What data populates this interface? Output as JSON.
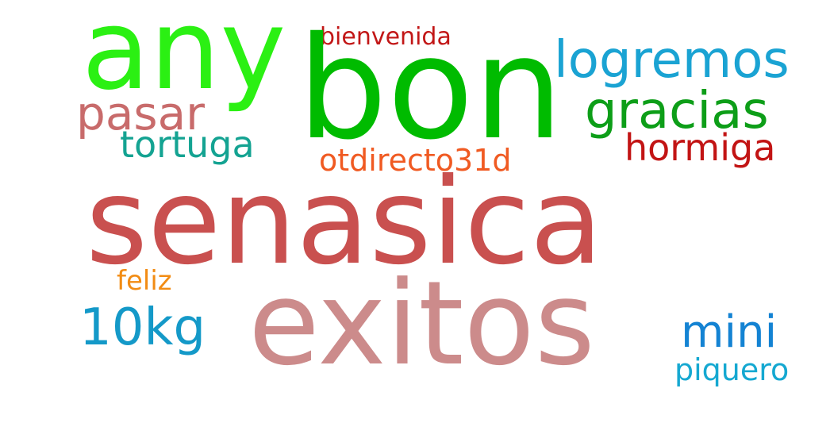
{
  "words": {
    "senasica": {
      "text": "senasica",
      "color": "#c9504f"
    },
    "bon": {
      "text": "bon",
      "color": "#00bb00"
    },
    "exitos": {
      "text": "exitos",
      "color": "#cc8b8b"
    },
    "any": {
      "text": "any",
      "color": "#2bf013"
    },
    "logremos": {
      "text": "logremos",
      "color": "#1aa3d3"
    },
    "gracias": {
      "text": "gracias",
      "color": "#0d9e18"
    },
    "pasar": {
      "text": "pasar",
      "color": "#c86b6b"
    },
    "tortuga": {
      "text": "tortuga",
      "color": "#14a392"
    },
    "hormiga": {
      "text": "hormiga",
      "color": "#c21414"
    },
    "otdirecto31d": {
      "text": "otdirecto31d",
      "color": "#f05a22"
    },
    "bienvenida": {
      "text": "bienvenida",
      "color": "#c21717"
    },
    "feliz": {
      "text": "feliz",
      "color": "#f28c14"
    },
    "tenkg": {
      "text": "10kg",
      "color": "#1499c8"
    },
    "mini": {
      "text": "mini",
      "color": "#1483d3"
    },
    "piquero": {
      "text": "piquero",
      "color": "#15a8d1"
    }
  }
}
